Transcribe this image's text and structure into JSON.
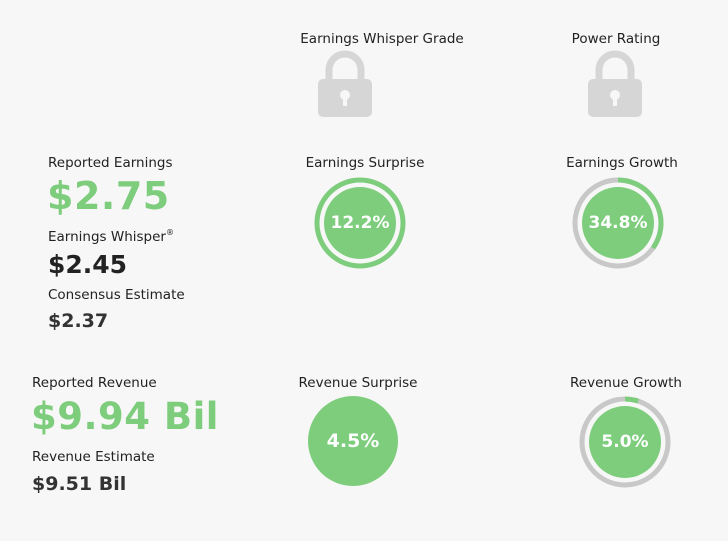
{
  "grades": {
    "whisper_grade_label": "Earnings Whisper Grade",
    "power_rating_label": "Power Rating",
    "lock_icon": "lock-icon"
  },
  "earnings": {
    "reported_label": "Reported Earnings",
    "reported_value": "$2.75",
    "whisper_label": "Earnings Whisper",
    "whisper_mark": "®",
    "whisper_value": "$2.45",
    "consensus_label": "Consensus Estimate",
    "consensus_value": "$2.37",
    "surprise_label": "Earnings Surprise",
    "surprise_value": "12.2%",
    "surprise_fraction": 1.0,
    "growth_label": "Earnings Growth",
    "growth_value": "34.8%",
    "growth_fraction": 0.348
  },
  "revenue": {
    "reported_label": "Reported Revenue",
    "reported_value": "$9.94 Bil",
    "estimate_label": "Revenue Estimate",
    "estimate_value": "$9.51 Bil",
    "surprise_label": "Revenue Surprise",
    "surprise_value": "4.5%",
    "growth_label": "Revenue Growth",
    "growth_value": "5.0%",
    "growth_fraction": 0.05
  },
  "colors": {
    "green": "#7dcd7d",
    "track_gray": "#c8c8c8",
    "lock_gray": "#d6d6d6",
    "background": "#f7f7f7"
  }
}
